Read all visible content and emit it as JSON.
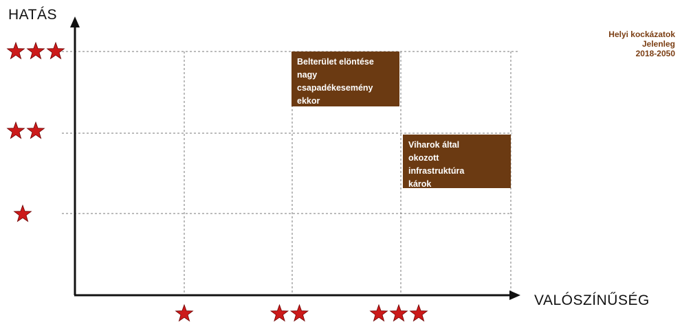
{
  "axes": {
    "y_title": "HATÁS",
    "x_title": "VALÓSZÍNŰSÉG"
  },
  "legend": {
    "lines": [
      "Helyi kockázatok",
      "Jelenleg",
      "2018-2050"
    ],
    "color": "#7a3d12"
  },
  "scale": {
    "impact_levels": [
      3,
      2,
      1
    ],
    "probability_levels": [
      1,
      2,
      3
    ],
    "star_icon": "star-icon",
    "star_color": "#cc1a1a"
  },
  "risks": [
    {
      "lines": [
        "Belterület elöntése",
        "nagy",
        "csapadékesemény",
        "ekkor"
      ],
      "impact": 3,
      "probability": 2
    },
    {
      "lines": [
        "Viharok által",
        "okozott",
        "infrastruktúra",
        "károk"
      ],
      "impact": 2,
      "probability": 3
    }
  ],
  "colors": {
    "box_fill": "#6b3a12",
    "box_text": "#ffffff",
    "axis": "#111111",
    "grid": "#777777"
  }
}
